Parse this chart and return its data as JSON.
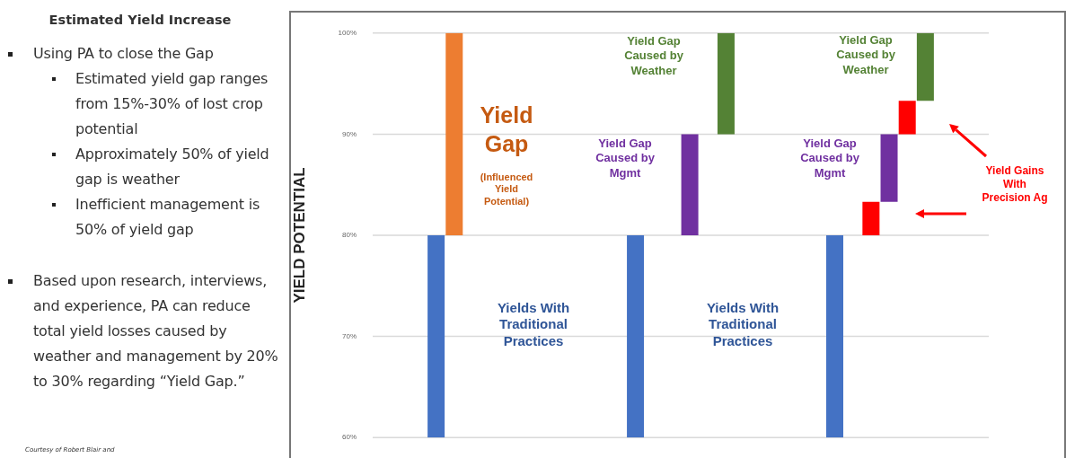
{
  "chart_data": [
    {
      "type": "other",
      "title": "Estimated Yield Increase",
      "annotations": [
        "Using PA to close the Gap",
        "Estimated yield gap ranges from 15%-30% of lost crop potential",
        "Approximately 50% of yield gap is weather",
        "Inefficient management is 50% of yield gap",
        "Based upon research, interviews, and experience, PA can reduce total yield losses caused by weather and management by 20% to 30% regarding “Yield Gap.”",
        "Courtesy of Robert Blair and"
      ]
    },
    {
      "type": "bar",
      "ylabel": "YIELD POTENTIAL",
      "categories": [
        null,
        null,
        null,
        null,
        null,
        null,
        null,
        null,
        null,
        null,
        null,
        null,
        null,
        null,
        null,
        null,
        null,
        null,
        null,
        null,
        null,
        null,
        null,
        null,
        null,
        null,
        null,
        null,
        null,
        null,
        null,
        null,
        null,
        null
      ],
      "base": [
        null,
        null,
        null,
        60,
        80,
        null,
        null,
        null,
        null,
        null,
        null,
        null,
        null,
        null,
        60,
        null,
        null,
        80,
        null,
        90,
        null,
        null,
        null,
        null,
        null,
        60,
        null,
        80,
        83.3,
        90,
        93.3,
        null,
        null,
        null
      ],
      "values": [
        null,
        null,
        null,
        20,
        20,
        null,
        null,
        null,
        null,
        null,
        null,
        null,
        null,
        null,
        20,
        null,
        null,
        10,
        null,
        10,
        null,
        null,
        null,
        null,
        null,
        20,
        null,
        3.3,
        6.7,
        3.3,
        6.7,
        null,
        null,
        null
      ],
      "colors": [
        null,
        null,
        null,
        "#4472c4",
        "#ed7d31",
        null,
        null,
        null,
        null,
        null,
        null,
        null,
        null,
        null,
        "#4472c4",
        null,
        null,
        "#7030a0",
        null,
        "#548235",
        null,
        null,
        null,
        null,
        null,
        "#4472c4",
        null,
        "#ff0000",
        "#7030a0",
        "#ff0000",
        "#548235",
        null,
        null,
        null
      ],
      "ylim": [
        60,
        100
      ],
      "yticks": [
        {
          "value": 60,
          "label": "60%"
        },
        {
          "value": 70,
          "label": "70%"
        },
        {
          "value": 80,
          "label": "80%"
        },
        {
          "value": 90,
          "label": "90%"
        },
        {
          "value": 100,
          "label": "100%"
        }
      ],
      "grid": "y",
      "legend": false,
      "annotations": [
        "Yield Gap",
        "(Influenced Yield Potential)",
        "Yield Gap Caused by Weather",
        "Yield Gap Caused by Mgmt",
        "Yields With Traditional Practices",
        "Yield Gap Caused by Weather",
        "Yield Gap Caused by Mgmt",
        "Yields With Traditional Practices",
        "Yield Gains With Precision Ag"
      ]
    }
  ]
}
